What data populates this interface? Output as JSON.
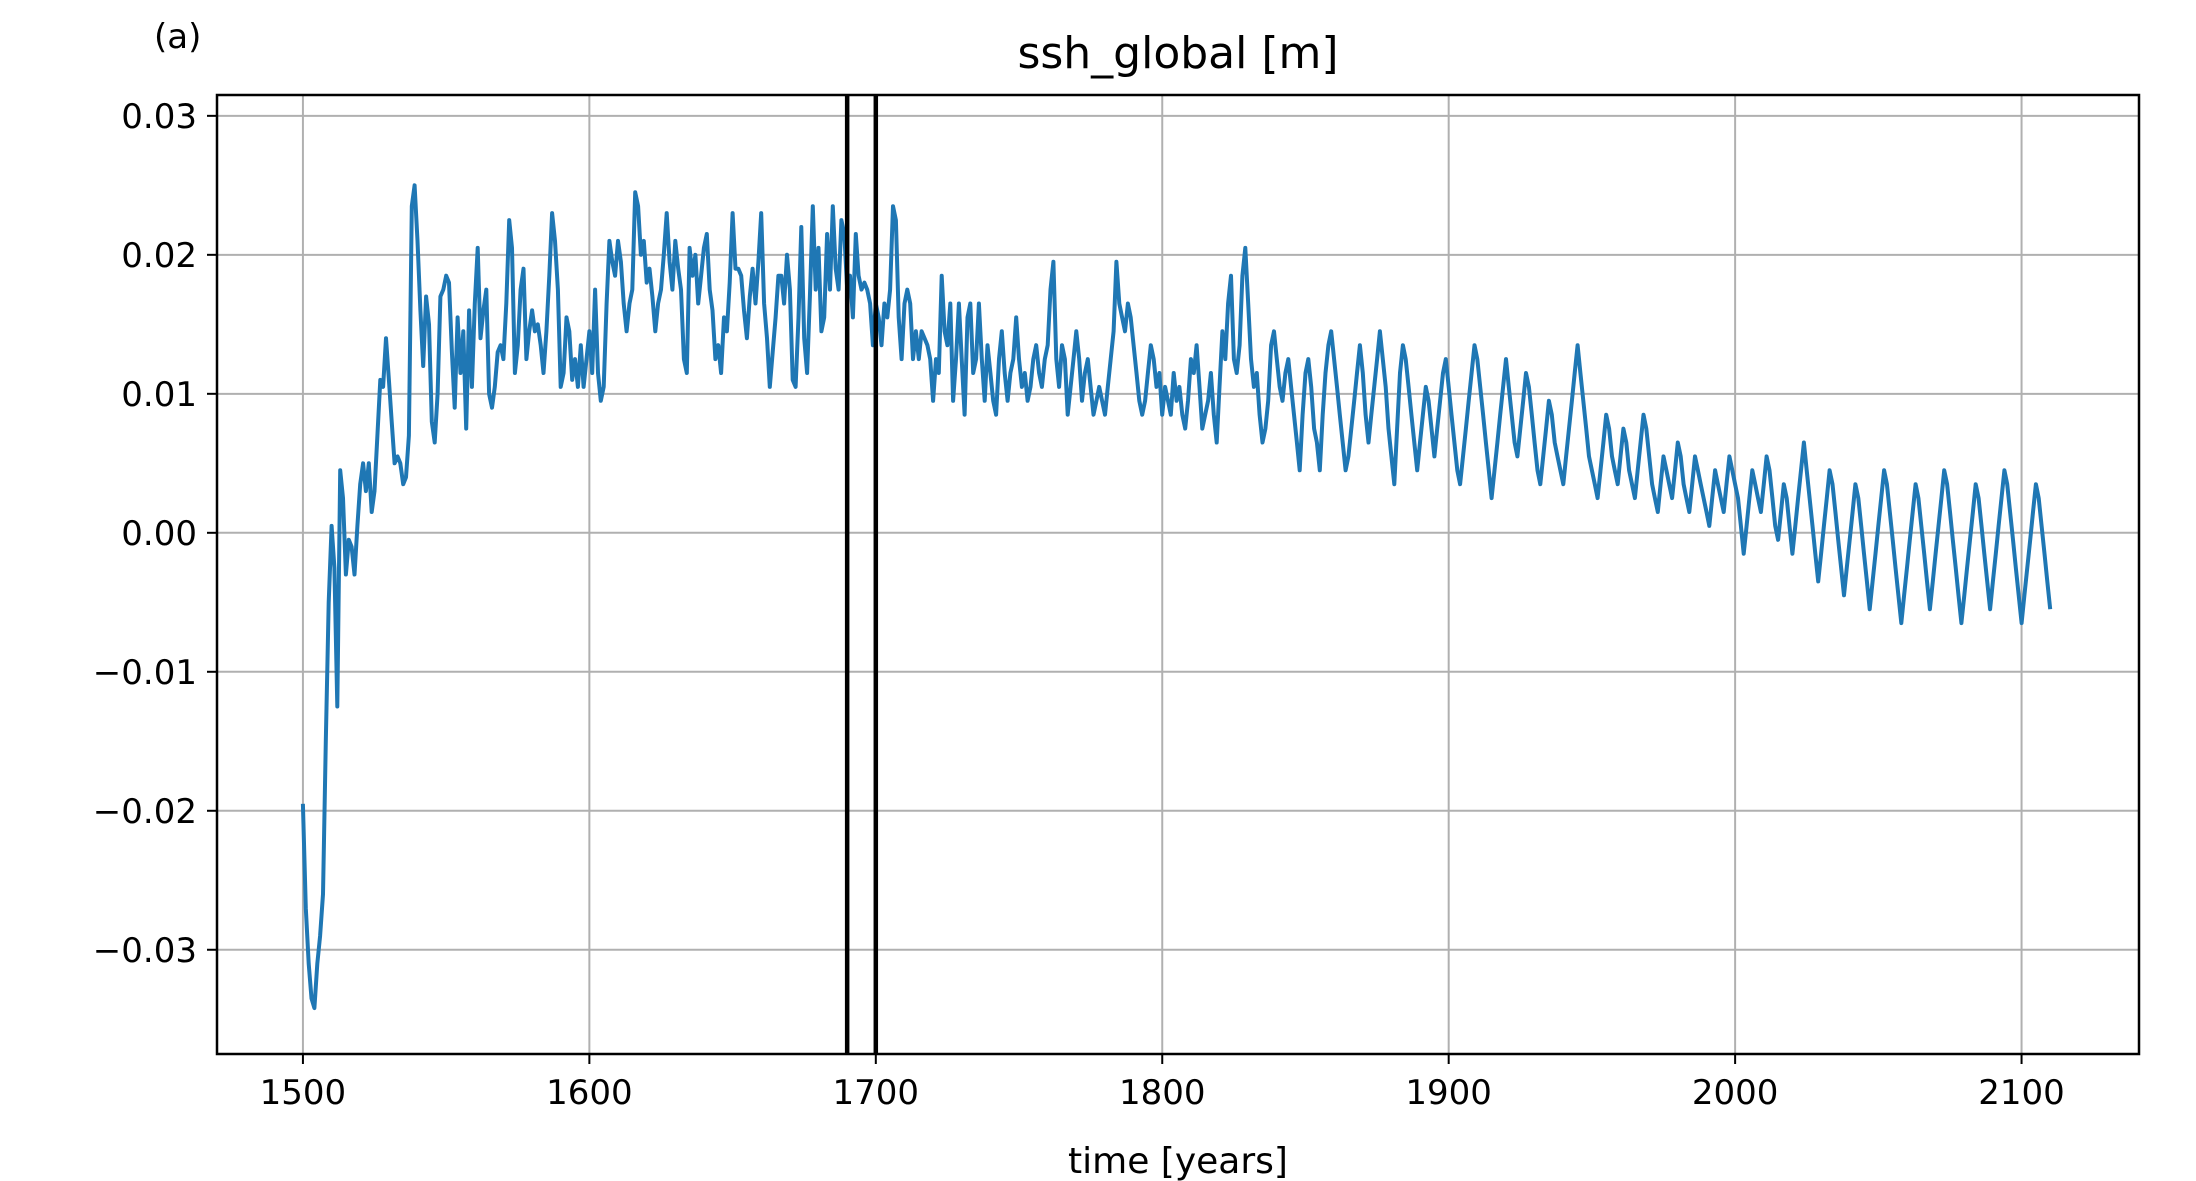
{
  "chart_data": {
    "type": "line",
    "panel_label": "(a)",
    "title": "ssh_global [m]",
    "xlabel": "time [years]",
    "ylabel": "",
    "xlim": [
      1470,
      2141
    ],
    "ylim": [
      -0.0375,
      0.0315
    ],
    "grid": true,
    "x_ticks": [
      1500,
      1600,
      1700,
      1800,
      1900,
      2000,
      2100
    ],
    "x_tick_labels": [
      "1500",
      "1600",
      "1700",
      "1800",
      "1900",
      "2000",
      "2100"
    ],
    "y_ticks": [
      0.03,
      0.02,
      0.01,
      0.0,
      -0.01,
      -0.02,
      -0.03
    ],
    "y_tick_labels": [
      "0.03",
      "0.02",
      "0.01",
      "0.00",
      "−0.01",
      "−0.02",
      "−0.03"
    ],
    "vertical_lines": [
      1690,
      1700
    ],
    "colors": {
      "series": "#1f77b4",
      "vlines": "#000000",
      "grid": "#b0b0b0"
    },
    "series": [
      {
        "x_start": 1500,
        "x_step": 1,
        "values": [
          -0.0195,
          -0.027,
          -0.031,
          -0.0335,
          -0.0342,
          -0.031,
          -0.029,
          -0.026,
          -0.015,
          -0.005,
          0.0005,
          -0.0025,
          -0.0125,
          0.0045,
          0.0025,
          -0.003,
          -0.0005,
          -0.001,
          -0.003,
          0.0005,
          0.0035,
          0.005,
          0.003,
          0.005,
          0.0015,
          0.003,
          0.007,
          0.011,
          0.0105,
          0.014,
          0.011,
          0.008,
          0.005,
          0.0055,
          0.005,
          0.0035,
          0.004,
          0.007,
          0.0235,
          0.025,
          0.021,
          0.016,
          0.012,
          0.017,
          0.015,
          0.008,
          0.0065,
          0.01,
          0.017,
          0.0175,
          0.0185,
          0.018,
          0.013,
          0.009,
          0.0155,
          0.0115,
          0.0145,
          0.0075,
          0.016,
          0.0105,
          0.0165,
          0.0205,
          0.014,
          0.016,
          0.0175,
          0.01,
          0.009,
          0.0105,
          0.013,
          0.0135,
          0.0125,
          0.0165,
          0.0225,
          0.0205,
          0.0115,
          0.0135,
          0.0175,
          0.019,
          0.0125,
          0.0145,
          0.016,
          0.0145,
          0.015,
          0.0135,
          0.0115,
          0.0145,
          0.0185,
          0.023,
          0.021,
          0.0175,
          0.0105,
          0.0115,
          0.0155,
          0.0145,
          0.011,
          0.0125,
          0.0105,
          0.0135,
          0.0105,
          0.0125,
          0.0145,
          0.0115,
          0.0175,
          0.0115,
          0.0095,
          0.0105,
          0.0165,
          0.021,
          0.0195,
          0.0185,
          0.021,
          0.0195,
          0.0165,
          0.0145,
          0.0165,
          0.0175,
          0.0245,
          0.0235,
          0.02,
          0.021,
          0.018,
          0.019,
          0.017,
          0.0145,
          0.0165,
          0.0175,
          0.02,
          0.023,
          0.0195,
          0.0175,
          0.021,
          0.019,
          0.0175,
          0.0125,
          0.0115,
          0.0205,
          0.0185,
          0.02,
          0.0165,
          0.0185,
          0.0205,
          0.0215,
          0.0175,
          0.016,
          0.0125,
          0.0135,
          0.0115,
          0.0155,
          0.0145,
          0.018,
          0.023,
          0.019,
          0.019,
          0.0185,
          0.016,
          0.014,
          0.017,
          0.019,
          0.0165,
          0.0195,
          0.023,
          0.0165,
          0.014,
          0.0105,
          0.013,
          0.0155,
          0.0185,
          0.0185,
          0.0165,
          0.02,
          0.0175,
          0.011,
          0.0105,
          0.0155,
          0.022,
          0.014,
          0.0115,
          0.017,
          0.0235,
          0.0175,
          0.0205,
          0.0145,
          0.0155,
          0.0215,
          0.0175,
          0.0235,
          0.019,
          0.0175,
          0.0225,
          0.0215,
          0.0175,
          0.0185,
          0.0155,
          0.0215,
          0.0185,
          0.0175,
          0.018,
          0.0175,
          0.0165,
          0.0135,
          0.0165,
          0.0155,
          0.0135,
          0.0165,
          0.0155,
          0.0175,
          0.0235,
          0.0225,
          0.0155,
          0.0125,
          0.0165,
          0.0175,
          0.0165,
          0.0125,
          0.0145,
          0.0125,
          0.0145,
          0.014,
          0.0135,
          0.0125,
          0.0095,
          0.0125,
          0.0115,
          0.0185,
          0.0145,
          0.0135,
          0.0165,
          0.0095,
          0.0125,
          0.0165,
          0.0125,
          0.0085,
          0.0155,
          0.0165,
          0.0115,
          0.0125,
          0.0165,
          0.0125,
          0.0095,
          0.0135,
          0.0115,
          0.0095,
          0.0085,
          0.0125,
          0.0145,
          0.0115,
          0.0095,
          0.0115,
          0.0125,
          0.0155,
          0.0125,
          0.0105,
          0.0115,
          0.0095,
          0.0105,
          0.0125,
          0.0135,
          0.0115,
          0.0105,
          0.0125,
          0.0135,
          0.0175,
          0.0195,
          0.0125,
          0.0105,
          0.0135,
          0.0125,
          0.0085,
          0.0105,
          0.0125,
          0.0145,
          0.0125,
          0.0095,
          0.0115,
          0.0125,
          0.0105,
          0.0085,
          0.0095,
          0.0105,
          0.0095,
          0.0085,
          0.0105,
          0.0125,
          0.0145,
          0.0195,
          0.0165,
          0.0155,
          0.0145,
          0.0165,
          0.0155,
          0.0135,
          0.0115,
          0.0095,
          0.0085,
          0.0095,
          0.0115,
          0.0135,
          0.0125,
          0.0105,
          0.0115,
          0.0085,
          0.0105,
          0.0095,
          0.0085,
          0.0115,
          0.0095,
          0.0105,
          0.0085,
          0.0075,
          0.0095,
          0.0125,
          0.0115,
          0.0135,
          0.0105,
          0.0075,
          0.0085,
          0.0095,
          0.0115,
          0.0085,
          0.0065,
          0.0105,
          0.0145,
          0.0125,
          0.0165,
          0.0185,
          0.0125,
          0.0115,
          0.0135,
          0.0185,
          0.0205,
          0.0165,
          0.0125,
          0.0105,
          0.0115,
          0.0085,
          0.0065,
          0.0075,
          0.0095,
          0.0135,
          0.0145,
          0.0125,
          0.0105,
          0.0095,
          0.0115,
          0.0125,
          0.0105,
          0.0085,
          0.0065,
          0.0045,
          0.0085,
          0.0115,
          0.0125,
          0.0105,
          0.0075,
          0.0065,
          0.0045,
          0.0085,
          0.0115,
          0.0135,
          0.0145,
          0.0125,
          0.0105,
          0.0085,
          0.0065,
          0.0045,
          0.0055,
          0.0075,
          0.0095,
          0.0115,
          0.0135,
          0.0115,
          0.0085,
          0.0065,
          0.0085,
          0.0105,
          0.0125,
          0.0145,
          0.0125,
          0.0105,
          0.0075,
          0.0055,
          0.0035,
          0.0075,
          0.0115,
          0.0135,
          0.0125,
          0.0105,
          0.0085,
          0.0065,
          0.0045,
          0.0065,
          0.0085,
          0.0105,
          0.0095,
          0.0075,
          0.0055,
          0.0075,
          0.0095,
          0.0115,
          0.0125,
          0.0105,
          0.0085,
          0.0065,
          0.0045,
          0.0035,
          0.0055,
          0.0075,
          0.0095,
          0.0115,
          0.0135,
          0.0125,
          0.0105,
          0.0085,
          0.0065,
          0.0045,
          0.0025,
          0.0045,
          0.0065,
          0.0085,
          0.0105,
          0.0125,
          0.0105,
          0.0085,
          0.0065,
          0.0055,
          0.0075,
          0.0095,
          0.0115,
          0.0105,
          0.0085,
          0.0065,
          0.0045,
          0.0035,
          0.0055,
          0.0075,
          0.0095,
          0.0085,
          0.0065,
          0.0055,
          0.0045,
          0.0035,
          0.0055,
          0.0075,
          0.0095,
          0.0115,
          0.0135,
          0.0115,
          0.0095,
          0.0075,
          0.0055,
          0.0045,
          0.0035,
          0.0025,
          0.0045,
          0.0065,
          0.0085,
          0.0075,
          0.0055,
          0.0045,
          0.0035,
          0.0055,
          0.0075,
          0.0065,
          0.0045,
          0.0035,
          0.0025,
          0.0045,
          0.0065,
          0.0085,
          0.0075,
          0.0055,
          0.0035,
          0.0025,
          0.0015,
          0.0035,
          0.0055,
          0.0045,
          0.0035,
          0.0025,
          0.0045,
          0.0065,
          0.0055,
          0.0035,
          0.0025,
          0.0015,
          0.0035,
          0.0055,
          0.0045,
          0.0035,
          0.0025,
          0.0015,
          0.0005,
          0.0025,
          0.0045,
          0.0035,
          0.0025,
          0.0015,
          0.0035,
          0.0055,
          0.0045,
          0.0035,
          0.0025,
          0.0005,
          -0.0015,
          0.0005,
          0.0025,
          0.0045,
          0.0035,
          0.0025,
          0.0015,
          0.0035,
          0.0055,
          0.0045,
          0.0025,
          0.0005,
          -0.0005,
          0.0015,
          0.0035,
          0.0025,
          0.0005,
          -0.0015,
          0.0005,
          0.0025,
          0.0045,
          0.0065,
          0.0045,
          0.0025,
          0.0005,
          -0.0015,
          -0.0035,
          -0.0015,
          0.0005,
          0.0025,
          0.0045,
          0.0035,
          0.0015,
          -0.0005,
          -0.0025,
          -0.0045,
          -0.0025,
          -0.0005,
          0.0015,
          0.0035,
          0.0025,
          0.0005,
          -0.0015,
          -0.0035,
          -0.0055,
          -0.0035,
          -0.0015,
          0.0005,
          0.0025,
          0.0045,
          0.0035,
          0.0015,
          -0.0005,
          -0.0025,
          -0.0045,
          -0.0065,
          -0.0045,
          -0.0025,
          -0.0005,
          0.0015,
          0.0035,
          0.0025,
          0.0005,
          -0.0015,
          -0.0035,
          -0.0055,
          -0.0035,
          -0.0015,
          0.0005,
          0.0025,
          0.0045,
          0.0035,
          0.0015,
          -0.0005,
          -0.0025,
          -0.0045,
          -0.0065,
          -0.0045,
          -0.0025,
          -0.0005,
          0.0015,
          0.0035,
          0.0025,
          0.0005,
          -0.0015,
          -0.0035,
          -0.0055,
          -0.0035,
          -0.0015,
          0.0005,
          0.0025,
          0.0045,
          0.0035,
          0.0015,
          -0.0005,
          -0.0025,
          -0.0045,
          -0.0065,
          -0.0045,
          -0.0025,
          -0.0005,
          0.0015,
          0.0035,
          0.0025,
          0.0005,
          -0.0015,
          -0.0035,
          -0.0055
        ]
      }
    ]
  }
}
